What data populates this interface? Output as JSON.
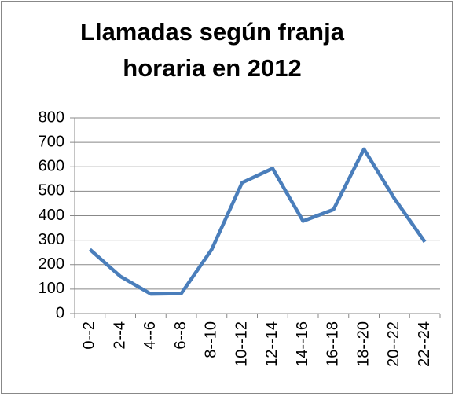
{
  "chart_data": {
    "type": "line",
    "title": "Llamadas según franja horaria en 2012",
    "categories": [
      "0--2",
      "2--4",
      "4--6",
      "6--8",
      "8--10",
      "10--12",
      "12--14",
      "14--16",
      "16--18",
      "18--20",
      "20--22",
      "22--24"
    ],
    "values": [
      262,
      152,
      80,
      82,
      262,
      535,
      593,
      378,
      425,
      672,
      470,
      293
    ],
    "color": "#4a7ebb",
    "ylim": [
      0,
      800
    ],
    "yticks": [
      0,
      100,
      200,
      300,
      400,
      500,
      600,
      700,
      800
    ],
    "grid": true
  }
}
